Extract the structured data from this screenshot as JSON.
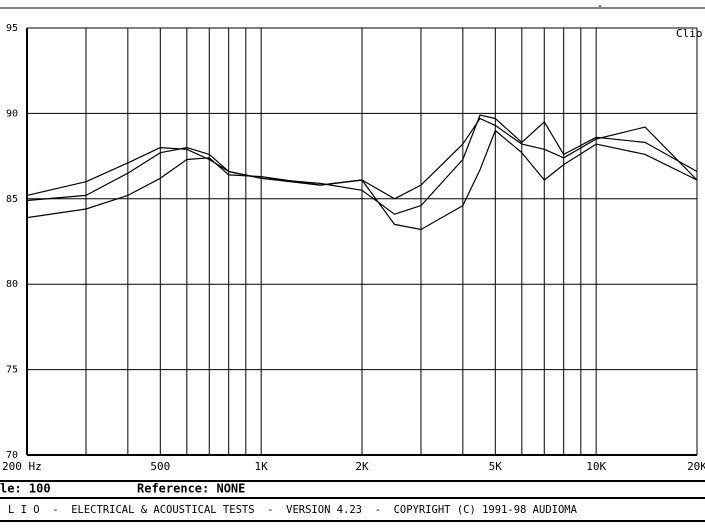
{
  "chart_data": {
    "type": "line",
    "corner_label": "Clio",
    "status": {
      "scale": "le: 100",
      "reference": "Reference: NONE"
    },
    "footer": "L I O  -  ELECTRICAL & ACOUSTICAL TESTS  -  VERSION 4.23  -  COPYRIGHT (C) 1991-98 AUDIOMA",
    "xscale": "log",
    "x": [
      200,
      300,
      400,
      500,
      600,
      700,
      800,
      1000,
      1500,
      2000,
      2500,
      3000,
      4000,
      4500,
      5000,
      6000,
      7000,
      8000,
      10000,
      14000,
      20000
    ],
    "series": [
      {
        "color": "#000000",
        "values": [
          85.2,
          86.0,
          87.1,
          88.0,
          87.9,
          87.3,
          86.6,
          86.2,
          85.8,
          86.1,
          85.0,
          85.8,
          88.2,
          89.7,
          89.3,
          88.2,
          87.9,
          87.4,
          88.5,
          89.2,
          86.1
        ]
      },
      {
        "color": "#000000",
        "values": [
          84.9,
          85.2,
          86.5,
          87.7,
          88.0,
          87.6,
          86.6,
          86.2,
          85.9,
          85.5,
          84.1,
          84.6,
          87.3,
          89.9,
          89.7,
          88.3,
          89.5,
          87.6,
          88.6,
          88.3,
          86.6
        ]
      },
      {
        "color": "#000000",
        "values": [
          83.9,
          84.4,
          85.2,
          86.2,
          87.3,
          87.4,
          86.4,
          86.3,
          85.8,
          86.1,
          83.5,
          83.2,
          84.6,
          86.7,
          89.0,
          87.7,
          86.1,
          87.0,
          88.2,
          87.6,
          86.1
        ]
      }
    ],
    "xlim": [
      200,
      20000
    ],
    "xticks": [
      {
        "value": 200,
        "label": "200 Hz"
      },
      500,
      {
        "value": 1000,
        "label": "1K"
      },
      {
        "value": 2000,
        "label": "2K"
      },
      {
        "value": 5000,
        "label": "5K"
      },
      {
        "value": 10000,
        "label": "10K"
      },
      {
        "value": 20000,
        "label": "20K"
      }
    ],
    "xgrid": [
      300,
      400,
      600,
      700,
      800,
      900,
      3000,
      4000,
      6000,
      7000,
      8000,
      9000
    ],
    "ylim": [
      70,
      95
    ],
    "yticks": [
      70,
      75,
      80,
      85,
      90,
      95
    ],
    "grid": true
  }
}
